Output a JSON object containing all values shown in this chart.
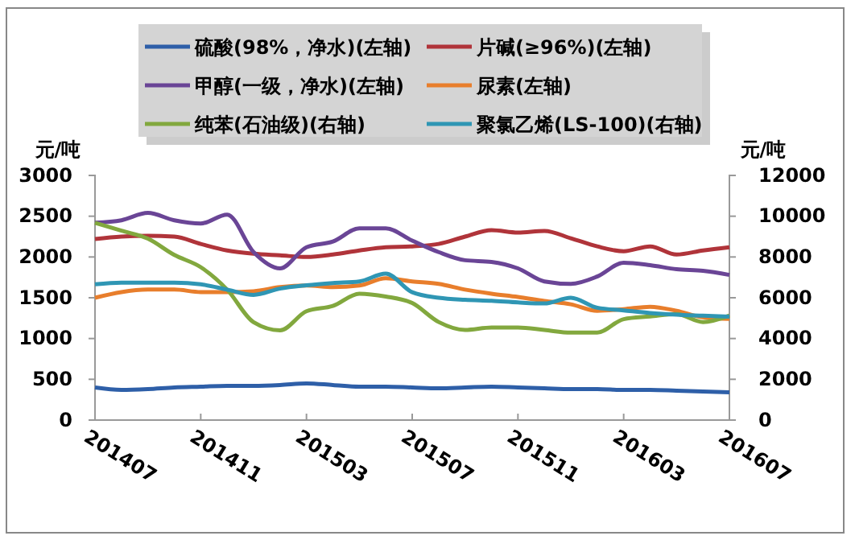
{
  "chart_data": {
    "type": "line",
    "ylabel": "元/吨",
    "y2label": "元/吨",
    "categories": [
      "201407",
      null,
      null,
      null,
      "201411",
      null,
      null,
      null,
      "201503",
      null,
      null,
      null,
      "201507",
      null,
      null,
      null,
      "201511",
      null,
      null,
      null,
      "201603",
      null,
      null,
      null,
      "201607"
    ],
    "ylim": [
      0,
      3000
    ],
    "yticks": [
      0,
      500,
      1000,
      1500,
      2000,
      2500,
      3000
    ],
    "y2lim": [
      0,
      12000
    ],
    "y2ticks": [
      0,
      2000,
      4000,
      6000,
      8000,
      10000,
      12000
    ],
    "grid": false,
    "legend": "top",
    "line_style": "solid",
    "marker": "none",
    "series": [
      {
        "name": "硫酸(98%，净水)(左轴)",
        "color": "#2e5fa8",
        "values": [
          400,
          370,
          380,
          400,
          410,
          420,
          420,
          430,
          450,
          430,
          410,
          410,
          400,
          390,
          400,
          410,
          400,
          390,
          380,
          380,
          370,
          370,
          360,
          350,
          340
        ]
      },
      {
        "name": "片碱(≥96%)(左轴)",
        "color": "#b0343a",
        "values": [
          2220,
          2250,
          2260,
          2250,
          2160,
          2080,
          2040,
          2020,
          2000,
          2030,
          2080,
          2120,
          2130,
          2160,
          2250,
          2330,
          2300,
          2320,
          2230,
          2130,
          2070,
          2130,
          2030,
          2080,
          2120
        ]
      },
      {
        "name": "甲醇(一级，净水)(左轴)",
        "color": "#6a4596",
        "values": [
          2420,
          2450,
          2540,
          2450,
          2410,
          2520,
          2060,
          1860,
          2120,
          2190,
          2350,
          2350,
          2200,
          2060,
          1960,
          1940,
          1860,
          1700,
          1670,
          1760,
          1930,
          1900,
          1850,
          1830,
          1780
        ]
      },
      {
        "name": "尿素(左轴)",
        "color": "#e87e2c",
        "values": [
          1500,
          1570,
          1600,
          1600,
          1570,
          1570,
          1580,
          1630,
          1650,
          1630,
          1650,
          1740,
          1700,
          1670,
          1600,
          1550,
          1510,
          1460,
          1420,
          1340,
          1360,
          1390,
          1340,
          1260,
          1240
        ]
      },
      {
        "name": "纯苯(石油级)(右轴)",
        "color": "#82a83e",
        "axis": "y2",
        "values": [
          9680,
          9290,
          8900,
          8100,
          7500,
          6400,
          4800,
          4400,
          5340,
          5600,
          6200,
          6060,
          5740,
          4810,
          4420,
          4540,
          4540,
          4420,
          4290,
          4290,
          4950,
          5080,
          5200,
          4810,
          5130
        ]
      },
      {
        "name": "聚氯乙烯(LS-100)(右轴)",
        "color": "#2f96b4",
        "axis": "y2",
        "values": [
          6660,
          6740,
          6740,
          6740,
          6660,
          6400,
          6140,
          6450,
          6610,
          6720,
          6800,
          7180,
          6270,
          6000,
          5900,
          5850,
          5770,
          5720,
          6000,
          5510,
          5380,
          5250,
          5170,
          5120,
          5070
        ]
      }
    ]
  }
}
